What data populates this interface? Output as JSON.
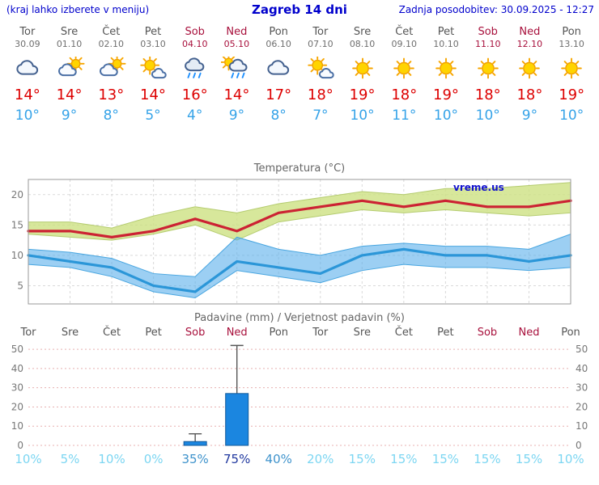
{
  "header": {
    "left_note": "(kraj lahko izberete v meniju)",
    "title": "Zagreb 14 dni",
    "updated": "Zadnja posodobitev: 30.09.2025 - 12:27"
  },
  "colors": {
    "header_blue": "#0000cc",
    "weekday": "#555555",
    "weekend": "#a8103c",
    "tmax_text": "#dd0000",
    "tmin_text": "#36a3e8",
    "tmax_line": "#cc2233",
    "tmin_line": "#2b96d8",
    "tmax_band": "rgba(205,225,130,0.8)",
    "tmax_band_edge": "#b5cc70",
    "tmin_band": "rgba(90,175,235,0.6)",
    "tmin_band_edge": "#49a6e0",
    "bar_fill": "#1b86e0",
    "bar_stroke": "#11599a",
    "grid": "#d9d9d9",
    "border": "#999999",
    "precip_grid": "#e8b0b0",
    "axis_text": "#777777",
    "whisker": "#555555",
    "prob_low": "#7cd6f2",
    "prob_mid": "#3f93cc",
    "prob_high": "#20389f",
    "watermark": "#1111cc"
  },
  "days": [
    {
      "name": "Tor",
      "date": "30.09",
      "weekend": false,
      "icon": "cloudy",
      "tmax": "14°",
      "tmin": "10°"
    },
    {
      "name": "Sre",
      "date": "01.10",
      "weekend": false,
      "icon": "partly-cloudy",
      "tmax": "14°",
      "tmin": "9°"
    },
    {
      "name": "Čet",
      "date": "02.10",
      "weekend": false,
      "icon": "partly-cloudy",
      "tmax": "13°",
      "tmin": "8°"
    },
    {
      "name": "Pet",
      "date": "03.10",
      "weekend": false,
      "icon": "mostly-sunny",
      "tmax": "14°",
      "tmin": "5°"
    },
    {
      "name": "Sob",
      "date": "04.10",
      "weekend": true,
      "icon": "rain",
      "tmax": "16°",
      "tmin": "4°"
    },
    {
      "name": "Ned",
      "date": "05.10",
      "weekend": true,
      "icon": "sun-rain",
      "tmax": "14°",
      "tmin": "9°"
    },
    {
      "name": "Pon",
      "date": "06.10",
      "weekend": false,
      "icon": "cloudy",
      "tmax": "17°",
      "tmin": "8°"
    },
    {
      "name": "Tor",
      "date": "07.10",
      "weekend": false,
      "icon": "mostly-sunny",
      "tmax": "18°",
      "tmin": "7°"
    },
    {
      "name": "Sre",
      "date": "08.10",
      "weekend": false,
      "icon": "sunny",
      "tmax": "19°",
      "tmin": "10°"
    },
    {
      "name": "Čet",
      "date": "09.10",
      "weekend": false,
      "icon": "sunny",
      "tmax": "18°",
      "tmin": "11°"
    },
    {
      "name": "Pet",
      "date": "10.10",
      "weekend": false,
      "icon": "sunny",
      "tmax": "19°",
      "tmin": "10°"
    },
    {
      "name": "Sob",
      "date": "11.10",
      "weekend": true,
      "icon": "sunny",
      "tmax": "18°",
      "tmin": "10°"
    },
    {
      "name": "Ned",
      "date": "12.10",
      "weekend": true,
      "icon": "sunny",
      "tmax": "18°",
      "tmin": "9°"
    },
    {
      "name": "Pon",
      "date": "13.10",
      "weekend": false,
      "icon": "sunny",
      "tmax": "19°",
      "tmin": "10°"
    }
  ],
  "chart_data": [
    {
      "type": "line",
      "title": "Temperatura (°C)",
      "watermark": "vreme.us",
      "categories": [
        "Tor",
        "Sre",
        "Čet",
        "Pet",
        "Sob",
        "Ned",
        "Pon",
        "Tor",
        "Sre",
        "Čet",
        "Pet",
        "Sob",
        "Ned",
        "Pon"
      ],
      "yticks": [
        5,
        10,
        15,
        20
      ],
      "ylim": [
        2,
        22.5
      ],
      "grid": true,
      "series": [
        {
          "name": "max-temperature",
          "values": [
            14,
            14,
            13,
            14,
            16,
            14,
            17,
            18,
            19,
            18,
            19,
            18,
            18,
            19
          ]
        },
        {
          "name": "min-temperature",
          "values": [
            10,
            9,
            8,
            5,
            4,
            9,
            8,
            7,
            10,
            11,
            10,
            10,
            9,
            10
          ]
        }
      ],
      "bands": [
        {
          "name": "max-temperature-range",
          "upper": [
            15.5,
            15.5,
            14.5,
            16.5,
            18,
            17,
            18.5,
            19.5,
            20.5,
            20,
            21,
            21,
            21.5,
            22
          ],
          "lower": [
            13.5,
            13,
            12.5,
            13.5,
            15,
            12.5,
            15.5,
            16.5,
            17.5,
            17,
            17.5,
            17,
            16.5,
            17
          ]
        },
        {
          "name": "min-temperature-range",
          "upper": [
            11,
            10.5,
            9.5,
            7,
            6.5,
            13,
            11,
            10,
            11.5,
            12,
            11.5,
            11.5,
            11,
            13.5
          ],
          "lower": [
            8.5,
            8,
            6.5,
            4,
            3,
            7.5,
            6.5,
            5.5,
            7.5,
            8.5,
            8,
            8,
            7.5,
            8
          ]
        }
      ]
    },
    {
      "type": "bar",
      "title": "Padavine (mm) / Verjetnost padavin (%)",
      "categories": [
        "Tor",
        "Sre",
        "Čet",
        "Pet",
        "Sob",
        "Ned",
        "Pon",
        "Tor",
        "Sre",
        "Čet",
        "Pet",
        "Sob",
        "Ned",
        "Pon"
      ],
      "yticks": [
        0,
        10,
        20,
        30,
        40,
        50
      ],
      "ylim": [
        0,
        53
      ],
      "values_mm": [
        0,
        0,
        0,
        0,
        2,
        27,
        0,
        0,
        0,
        0,
        0,
        0,
        0,
        0
      ],
      "whisker_mm": [
        0,
        0,
        0,
        0,
        6,
        52,
        0,
        0,
        0,
        0,
        0,
        0,
        0,
        0
      ],
      "probabilities": [
        10,
        5,
        10,
        0,
        35,
        75,
        40,
        20,
        15,
        15,
        15,
        15,
        15,
        10
      ],
      "prob_labels": [
        "10%",
        "5%",
        "10%",
        "0%",
        "35%",
        "75%",
        "40%",
        "20%",
        "15%",
        "15%",
        "15%",
        "15%",
        "15%",
        "10%"
      ]
    }
  ]
}
